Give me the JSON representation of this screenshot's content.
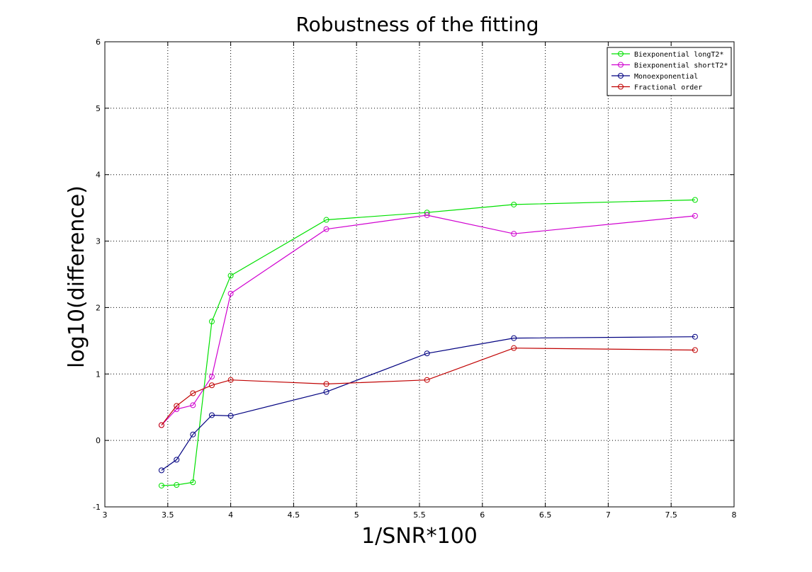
{
  "chart_data": {
    "type": "line",
    "title": "Robustness of the fitting",
    "xlabel": "1/SNR*100",
    "ylabel": "log10(difference)",
    "xlim": [
      3,
      8
    ],
    "ylim": [
      -1,
      6
    ],
    "xticks": [
      3,
      3.5,
      4,
      4.5,
      5,
      5.5,
      6,
      6.5,
      7,
      7.5,
      8
    ],
    "xtick_labels": [
      "3",
      "3.5",
      "4",
      "4.5",
      "5",
      "5.5",
      "6",
      "6.5",
      "7",
      "7.5",
      "8"
    ],
    "yticks": [
      -1,
      0,
      1,
      2,
      3,
      4,
      5,
      6
    ],
    "ytick_labels": [
      "-1",
      "0",
      "1",
      "2",
      "3",
      "4",
      "5",
      "6"
    ],
    "grid": true,
    "legend_position": "top-right",
    "marker": "circle",
    "series": [
      {
        "name": "Biexponential longT2*",
        "color": "#00e000",
        "x": [
          3.45,
          3.57,
          3.7,
          3.85,
          4.0,
          4.76,
          5.56,
          6.25,
          7.69
        ],
        "y": [
          -0.68,
          -0.67,
          -0.63,
          1.79,
          2.48,
          3.32,
          3.43,
          3.55,
          3.62
        ]
      },
      {
        "name": "Biexponential shortT2*",
        "color": "#d000d0",
        "x": [
          3.45,
          3.57,
          3.7,
          3.85,
          4.0,
          4.76,
          5.56,
          6.25,
          7.69
        ],
        "y": [
          0.23,
          0.47,
          0.53,
          0.96,
          2.21,
          3.18,
          3.39,
          3.11,
          3.38
        ]
      },
      {
        "name": "Monoexponential",
        "color": "#000080",
        "x": [
          3.45,
          3.57,
          3.7,
          3.85,
          4.0,
          4.76,
          5.56,
          6.25,
          7.69
        ],
        "y": [
          -0.45,
          -0.29,
          0.09,
          0.38,
          0.37,
          0.73,
          1.31,
          1.54,
          1.56
        ]
      },
      {
        "name": "Fractional order",
        "color": "#c00000",
        "x": [
          3.45,
          3.57,
          3.7,
          3.85,
          4.0,
          4.76,
          5.56,
          6.25,
          7.69
        ],
        "y": [
          0.23,
          0.52,
          0.71,
          0.83,
          0.91,
          0.85,
          0.91,
          1.39,
          1.36
        ]
      }
    ]
  }
}
